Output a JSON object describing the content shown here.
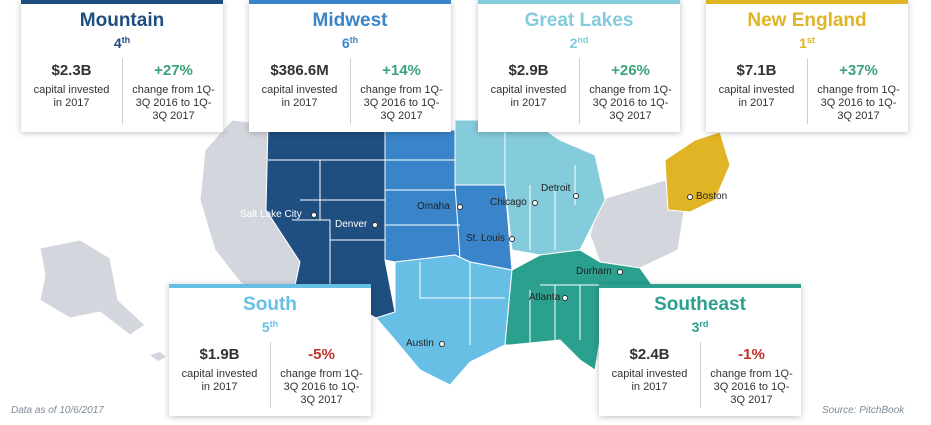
{
  "colors": {
    "mountain": "#1e4f80",
    "midwest": "#3a85c9",
    "great_lakes": "#84cbdb",
    "new_england": "#e0b424",
    "south": "#67bfe6",
    "southeast": "#2ba08e",
    "other_states": "#d3d7dd",
    "positive": "#3aa37a",
    "negative": "#c0302a"
  },
  "regions": [
    {
      "name": "Mountain",
      "rank_num": "4",
      "rank_suffix": "th",
      "amount": "$2.3B",
      "amount_label": "capital invested in 2017",
      "change": "+27%",
      "change_label": "change from 1Q-3Q 2016 to 1Q-3Q 2017"
    },
    {
      "name": "Midwest",
      "rank_num": "6",
      "rank_suffix": "th",
      "amount": "$386.6M",
      "amount_label": "capital invested in 2017",
      "change": "+14%",
      "change_label": "change from 1Q-3Q 2016 to 1Q-3Q 2017"
    },
    {
      "name": "Great Lakes",
      "rank_num": "2",
      "rank_suffix": "nd",
      "amount": "$2.9B",
      "amount_label": "capital invested in 2017",
      "change": "+26%",
      "change_label": "change from 1Q-3Q 2016 to 1Q-3Q 2017"
    },
    {
      "name": "New England",
      "rank_num": "1",
      "rank_suffix": "st",
      "amount": "$7.1B",
      "amount_label": "capital invested in 2017",
      "change": "+37%",
      "change_label": "change from 1Q-3Q 2016 to 1Q-3Q 2017"
    },
    {
      "name": "South",
      "rank_num": "5",
      "rank_suffix": "th",
      "amount": "$1.9B",
      "amount_label": "capital invested in 2017",
      "change": "-5%",
      "change_label": "change from 1Q-3Q 2016 to 1Q-3Q 2017"
    },
    {
      "name": "Southeast",
      "rank_num": "3",
      "rank_suffix": "rd",
      "amount": "$2.4B",
      "amount_label": "capital invested in 2017",
      "change": "-1%",
      "change_label": "change from 1Q-3Q 2016 to 1Q-3Q 2017"
    }
  ],
  "cities": [
    "Salt Lake City",
    "Denver",
    "Omaha",
    "Chicago",
    "Detroit",
    "St. Louis",
    "Boston",
    "Durham",
    "Atlanta",
    "Austin"
  ],
  "footer": {
    "data_note": "Data as of 10/6/2017",
    "source": "Source: PitchBook"
  }
}
